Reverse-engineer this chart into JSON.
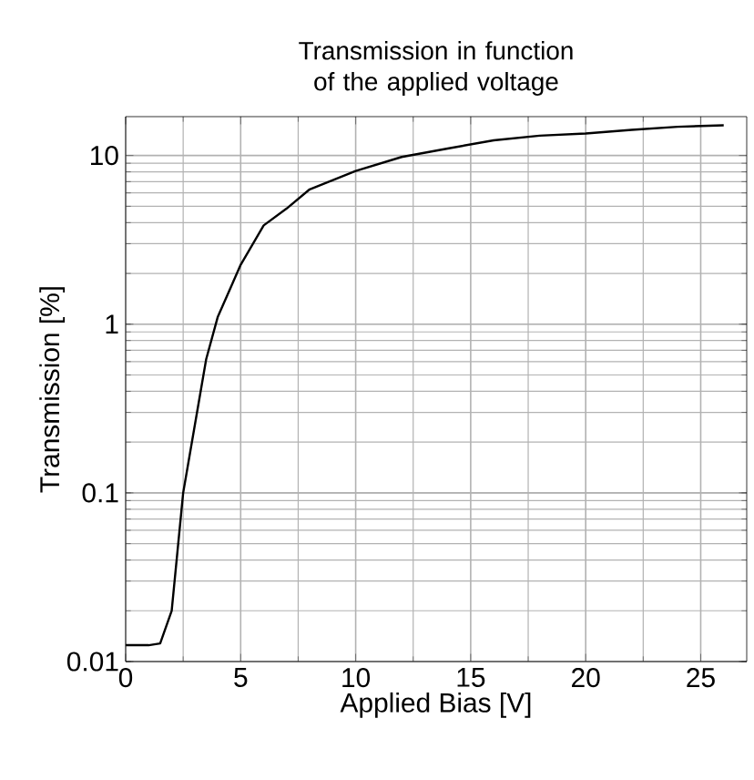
{
  "chart_data": {
    "type": "line",
    "title": "Transmission in function of the applied voltage",
    "xlabel": "Applied Bias [V]",
    "ylabel": "Transmission [%]",
    "log": "y",
    "grid": true,
    "xlim": [
      0,
      27
    ],
    "ylim": [
      0.01,
      17
    ],
    "xticks": [
      0,
      5,
      10,
      15,
      20,
      25
    ],
    "yticks": [
      0.01,
      0.1,
      1,
      10
    ],
    "series": [
      {
        "color": "#000000",
        "x": [
          0,
          1,
          1.5,
          2,
          2.5,
          3.5,
          4,
          5,
          6,
          7,
          8,
          10,
          12,
          14,
          16,
          18,
          20,
          22,
          24,
          26
        ],
        "values": [
          0.0125,
          0.0125,
          0.0128,
          0.02,
          0.1,
          0.62,
          1.1,
          2.25,
          3.85,
          4.85,
          6.3,
          8.1,
          9.8,
          11,
          12.3,
          13.1,
          13.5,
          14.2,
          14.8,
          15.1
        ]
      }
    ]
  }
}
